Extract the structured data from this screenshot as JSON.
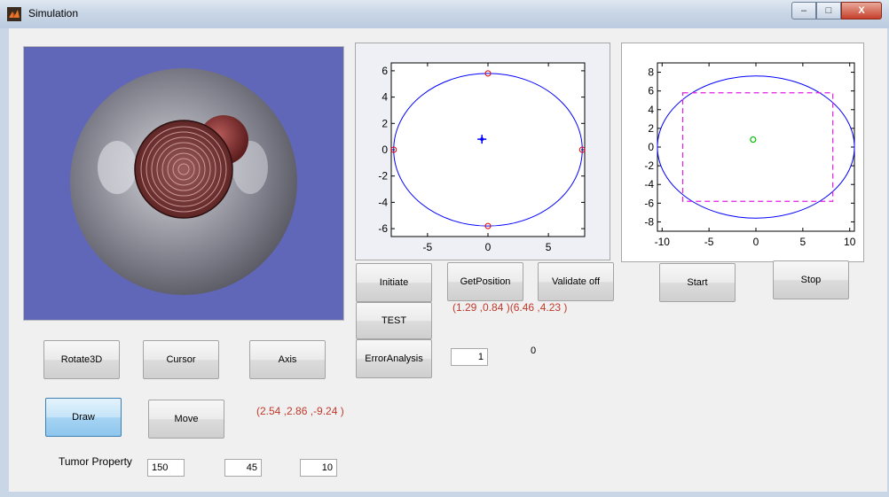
{
  "window": {
    "title": "Simulation",
    "app_icon": "matlab-icon",
    "controls": {
      "minimize": "–",
      "maximize": "□",
      "close": "X"
    }
  },
  "plot1": {
    "xticks": [
      "-5",
      "0",
      "5"
    ],
    "yticks": [
      "6",
      "4",
      "2",
      "0",
      "-2",
      "-4",
      "-6"
    ],
    "xlim": [
      -8,
      8
    ],
    "ylim": [
      -6.6,
      6.6
    ],
    "ellipse": {
      "cx": 0,
      "cy": 0,
      "rx": 7.8,
      "ry": 5.8,
      "color": "#0000ff"
    },
    "red_markers": [
      [
        0,
        5.8
      ],
      [
        0,
        -5.8
      ],
      [
        -7.8,
        0
      ],
      [
        7.8,
        0
      ]
    ],
    "center_marker": [
      -0.5,
      0.8
    ]
  },
  "plot2": {
    "xticks": [
      "-10",
      "-5",
      "0",
      "5",
      "10"
    ],
    "yticks": [
      "8",
      "6",
      "4",
      "2",
      "0",
      "-2",
      "-4",
      "-6",
      "-8"
    ],
    "xlim": [
      -10.5,
      10.5
    ],
    "ylim": [
      -9,
      9
    ],
    "ellipse": {
      "cx": 0,
      "cy": 0,
      "rx": 10.5,
      "ry": 7.6,
      "color": "#0000ff"
    },
    "rect": {
      "x0": -7.8,
      "x1": 8.2,
      "y0": -5.8,
      "y1": 5.8,
      "color": "#e020e0"
    },
    "green_marker": [
      -0.3,
      0.8
    ]
  },
  "buttons": {
    "initiate": "Initiate",
    "getposition": "GetPosition",
    "validate": "Validate off",
    "test": "TEST",
    "erroranalysis": "ErrorAnalysis",
    "start": "Start",
    "stop": "Stop",
    "rotate3d": "Rotate3D",
    "cursor": "Cursor",
    "axis": "Axis",
    "draw": "Draw",
    "move": "Move"
  },
  "readouts": {
    "positions": "(1.29 ,0.84 )(6.46 ,4.23 )",
    "cursor_coords": "(2.54 ,2.86 ,-9.24 )",
    "error_count": "0"
  },
  "fields": {
    "error_input": "1"
  },
  "tumor": {
    "label": "Tumor Property",
    "values": [
      "150",
      "45",
      "10"
    ]
  }
}
